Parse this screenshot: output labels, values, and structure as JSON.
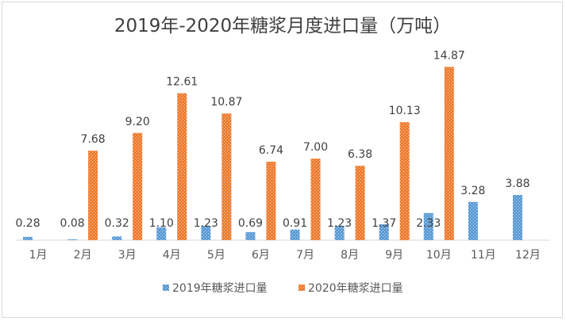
{
  "chart_data": {
    "type": "bar",
    "title": "2019年-2020年糖浆月度进口量（万吨）",
    "xlabel": "",
    "ylabel": "",
    "grid": false,
    "legend_position": "bottom",
    "ylim": [
      0,
      16
    ],
    "categories": [
      "1月",
      "2月",
      "3月",
      "4月",
      "5月",
      "6月",
      "7月",
      "8月",
      "9月",
      "10月",
      "11月",
      "12月"
    ],
    "series": [
      {
        "name": "2019年糖浆进口量",
        "color": "#5b9bd5",
        "values": [
          0.28,
          0.08,
          0.32,
          1.1,
          1.23,
          0.69,
          0.91,
          1.23,
          1.37,
          2.33,
          3.28,
          3.88
        ],
        "labels": [
          "0.28",
          "0.08",
          "0.32",
          "1.10",
          "1.23",
          "0.69",
          "0.91",
          "1.23",
          "1.37",
          "2.33",
          "3.28",
          "3.88"
        ]
      },
      {
        "name": "2020年糖浆进口量",
        "color": "#ed7d31",
        "values": [
          null,
          7.68,
          9.2,
          12.61,
          10.87,
          6.74,
          7.0,
          6.38,
          10.13,
          14.87,
          null,
          null
        ],
        "labels": [
          null,
          "7.68",
          "9.20",
          "12.61",
          "10.87",
          "6.74",
          "7.00",
          "6.38",
          "10.13",
          "14.87",
          null,
          null
        ]
      }
    ]
  }
}
